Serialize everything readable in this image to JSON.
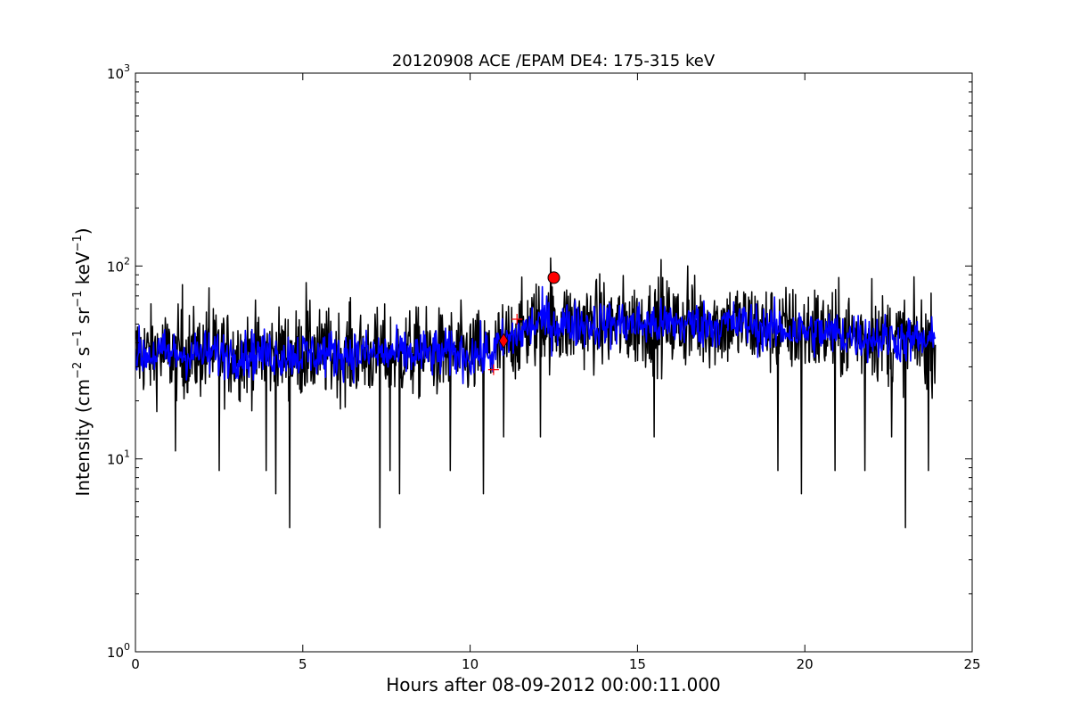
{
  "chart_data": {
    "type": "line",
    "title": "20120908 ACE /EPAM DE4: 175-315 keV",
    "xlabel": "Hours after 08-09-2012 00:00:11.000",
    "ylabel": {
      "prefix": "Intensity (cm",
      "parts": [
        {
          "text": "cm",
          "sup": "−2"
        },
        {
          "text": "s",
          "sup": "−1"
        },
        {
          "text": "sr",
          "sup": "−1"
        },
        {
          "text": "keV",
          "sup": "−1"
        }
      ]
    },
    "xlim": [
      0,
      25
    ],
    "ylim": [
      1,
      1000
    ],
    "yscale": "log",
    "grid": false,
    "xticks": [
      0,
      5,
      10,
      15,
      20,
      25
    ],
    "xtick_labels": [
      "0",
      "5",
      "10",
      "15",
      "20",
      "25"
    ],
    "yticks": [
      1,
      10,
      100,
      1000
    ],
    "ytick_labels": [
      {
        "base": "10",
        "exp": "0"
      },
      {
        "base": "10",
        "exp": "1"
      },
      {
        "base": "10",
        "exp": "2"
      },
      {
        "base": "10",
        "exp": "3"
      }
    ],
    "series": [
      {
        "style": "raw",
        "color": "#000000",
        "x_range": [
          0,
          23.9
        ],
        "segments": [
          {
            "x": [
              0,
              10.6
            ],
            "baseline": 35
          },
          {
            "x": [
              10.6,
              12.3
            ],
            "baseline": [
              35,
              54
            ]
          },
          {
            "x": [
              12.3,
              18.5
            ],
            "baseline": 50
          },
          {
            "x": [
              18.5,
              23.9
            ],
            "baseline": [
              48,
              40
            ]
          }
        ],
        "spikes_low": [
          {
            "x": 1.2,
            "y": 11
          },
          {
            "x": 2.5,
            "y": 8.7
          },
          {
            "x": 3.9,
            "y": 8.7
          },
          {
            "x": 4.2,
            "y": 6.6
          },
          {
            "x": 4.6,
            "y": 4.4
          },
          {
            "x": 6.4,
            "y": 8.7
          },
          {
            "x": 7.3,
            "y": 4.4
          },
          {
            "x": 7.6,
            "y": 8.7
          },
          {
            "x": 7.9,
            "y": 6.6
          },
          {
            "x": 9.4,
            "y": 8.7
          },
          {
            "x": 10.4,
            "y": 6.6
          },
          {
            "x": 12.1,
            "y": 13
          },
          {
            "x": 15.5,
            "y": 13
          },
          {
            "x": 19.2,
            "y": 8.7
          },
          {
            "x": 19.9,
            "y": 6.6
          },
          {
            "x": 20.9,
            "y": 8.7
          },
          {
            "x": 21.8,
            "y": 8.7
          },
          {
            "x": 23.0,
            "y": 4.4
          },
          {
            "x": 23.7,
            "y": 8.7
          },
          {
            "x": 22.6,
            "y": 13
          },
          {
            "x": 11.0,
            "y": 13
          }
        ],
        "spikes_high": [
          {
            "x": 1.4,
            "y": 80
          },
          {
            "x": 2.2,
            "y": 77
          },
          {
            "x": 5.1,
            "y": 82
          },
          {
            "x": 6.4,
            "y": 65
          },
          {
            "x": 12.4,
            "y": 110
          },
          {
            "x": 15.7,
            "y": 108
          },
          {
            "x": 16.5,
            "y": 100
          },
          {
            "x": 20.3,
            "y": 75
          },
          {
            "x": 22.0,
            "y": 86
          }
        ]
      },
      {
        "style": "smoothed",
        "color": "#0000ff",
        "x_range": [
          0,
          23.9
        ],
        "segments": [
          {
            "x": [
              0,
              10.6
            ],
            "baseline": 35
          },
          {
            "x": [
              10.6,
              12.3
            ],
            "baseline": [
              35,
              54
            ]
          },
          {
            "x": [
              12.3,
              18.5
            ],
            "baseline": 50
          },
          {
            "x": [
              18.5,
              23.9
            ],
            "baseline": [
              48,
              40
            ]
          }
        ]
      }
    ],
    "markers": [
      {
        "shape": "plus",
        "x": 10.7,
        "y": 29,
        "color": "#ff0000"
      },
      {
        "shape": "diamond",
        "x": 11.0,
        "y": 41,
        "color": "#ff0000"
      },
      {
        "shape": "plus",
        "x": 11.4,
        "y": 53,
        "color": "#ff0000"
      },
      {
        "shape": "circle",
        "x": 12.5,
        "y": 87,
        "color": "#ff0000"
      }
    ]
  }
}
